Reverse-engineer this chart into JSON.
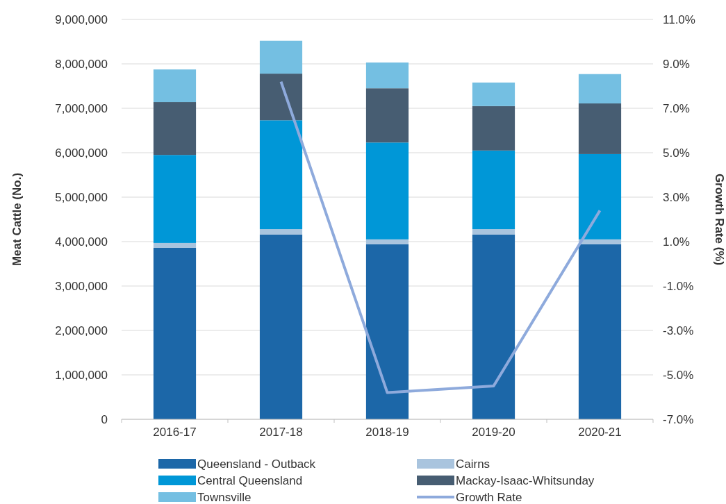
{
  "chart_data": {
    "type": "bar",
    "stacked": true,
    "categories": [
      "2016-17",
      "2017-18",
      "2018-19",
      "2019-20",
      "2020-21"
    ],
    "ylabel": "Meat Cattle (No.)",
    "y2label": "Growth Rate (%)",
    "ylim": [
      0,
      9000000
    ],
    "yticks": [
      {
        "value": 0,
        "label": "0"
      },
      {
        "value": 1000000,
        "label": "1,000,000"
      },
      {
        "value": 2000000,
        "label": "2,000,000"
      },
      {
        "value": 3000000,
        "label": "3,000,000"
      },
      {
        "value": 4000000,
        "label": "4,000,000"
      },
      {
        "value": 5000000,
        "label": "5,000,000"
      },
      {
        "value": 6000000,
        "label": "6,000,000"
      },
      {
        "value": 7000000,
        "label": "7,000,000"
      },
      {
        "value": 8000000,
        "label": "8,000,000"
      },
      {
        "value": 9000000,
        "label": "9,000,000"
      }
    ],
    "y2lim": [
      -7,
      11
    ],
    "y2ticks": [
      {
        "value": -7,
        "label": "-7.0%"
      },
      {
        "value": -5,
        "label": "-5.0%"
      },
      {
        "value": -3,
        "label": "-3.0%"
      },
      {
        "value": -1,
        "label": "-1.0%"
      },
      {
        "value": 1,
        "label": "1.0%"
      },
      {
        "value": 3,
        "label": "3.0%"
      },
      {
        "value": 5,
        "label": "5.0%"
      },
      {
        "value": 7,
        "label": "7.0%"
      },
      {
        "value": 9,
        "label": "9.0%"
      },
      {
        "value": 11,
        "label": "11.0%"
      }
    ],
    "grid": "y",
    "legend": "bottom",
    "series": [
      {
        "name": "Queensland - Outback",
        "color": "#1c67a8",
        "values": [
          3860000,
          4160000,
          3940000,
          4160000,
          3940000
        ]
      },
      {
        "name": "Cairns",
        "color": "#a9c4de",
        "values": [
          110000,
          120000,
          110000,
          120000,
          110000
        ]
      },
      {
        "name": "Central Queensland",
        "color": "#0097d7",
        "values": [
          1980000,
          2450000,
          2180000,
          1770000,
          1920000
        ]
      },
      {
        "name": "Mackay-Isaac-Whitsunday",
        "color": "#475d72",
        "values": [
          1190000,
          1050000,
          1220000,
          1000000,
          1140000
        ]
      },
      {
        "name": "Townsville",
        "color": "#74bfe2",
        "values": [
          735000,
          740000,
          580000,
          530000,
          660000
        ]
      },
      {
        "name": "Growth Rate",
        "type": "line",
        "axis": "y2",
        "color": "#8eaadc",
        "values": [
          null,
          8.2,
          -5.8,
          -5.5,
          2.4
        ]
      }
    ]
  }
}
